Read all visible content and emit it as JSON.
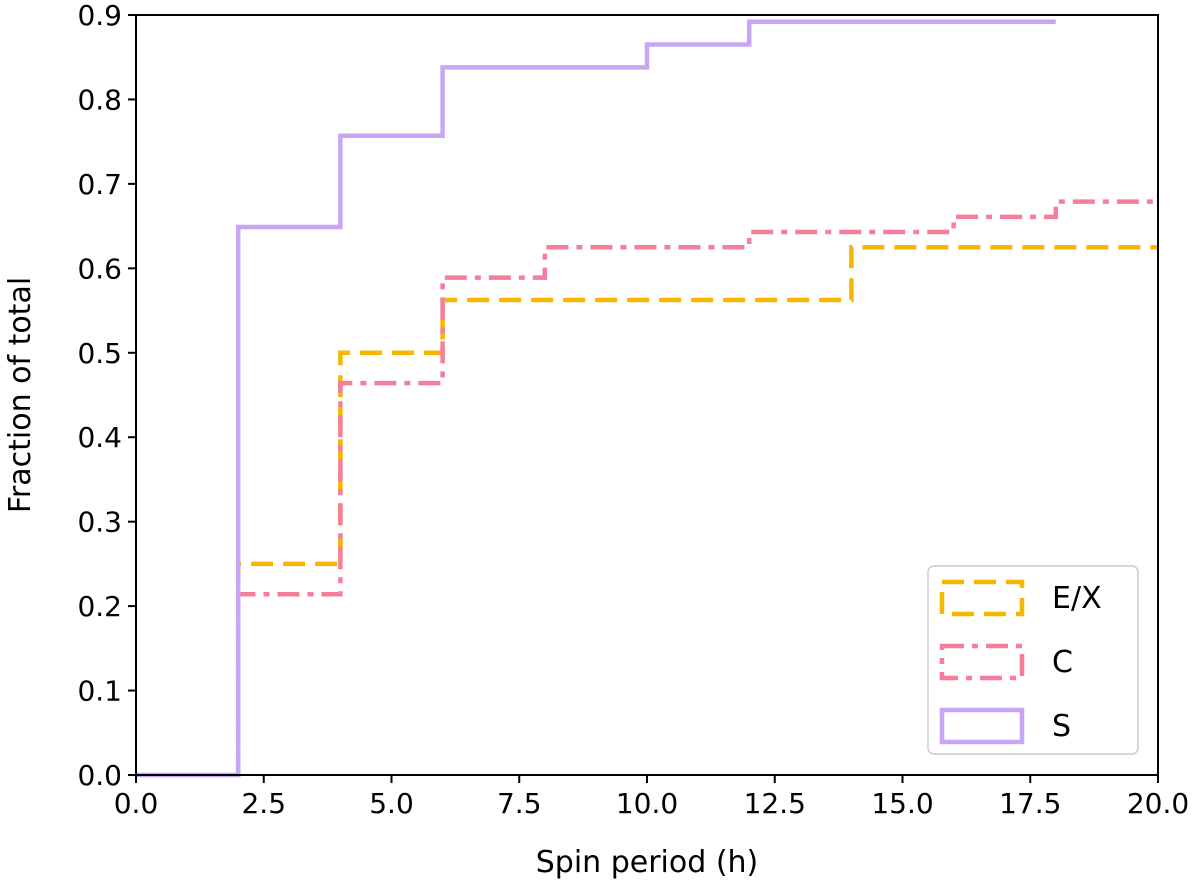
{
  "chart_data": {
    "type": "step",
    "title": "",
    "xlabel": "Spin period (h)",
    "ylabel": "Fraction of total",
    "xlim": [
      0,
      20
    ],
    "ylim": [
      0,
      0.9
    ],
    "xticks": [
      "0.0",
      "2.5",
      "5.0",
      "7.5",
      "10.0",
      "12.5",
      "15.0",
      "17.5",
      "20.0"
    ],
    "yticks": [
      "0.0",
      "0.1",
      "0.2",
      "0.3",
      "0.4",
      "0.5",
      "0.6",
      "0.7",
      "0.8",
      "0.9"
    ],
    "grid": false,
    "legend_position": "bottom-right",
    "series": [
      {
        "name": "E/X",
        "color": "#f5b700",
        "style": "dashed",
        "x": [
          2,
          4,
          6,
          14,
          20
        ],
        "y": [
          0.25,
          0.5,
          0.5625,
          0.625,
          0.625
        ]
      },
      {
        "name": "C",
        "color": "#f57f9b",
        "style": "dashdot",
        "x": [
          2,
          4,
          6,
          8,
          12,
          16,
          18,
          20
        ],
        "y": [
          0.214,
          0.464,
          0.589,
          0.625,
          0.643,
          0.661,
          0.679,
          0.679
        ]
      },
      {
        "name": "S",
        "color": "#c9a6f5",
        "style": "solid",
        "x": [
          0,
          2,
          4,
          6,
          10,
          12,
          18
        ],
        "y": [
          0.0,
          0.649,
          0.757,
          0.838,
          0.865,
          0.892,
          0.892
        ]
      }
    ]
  }
}
